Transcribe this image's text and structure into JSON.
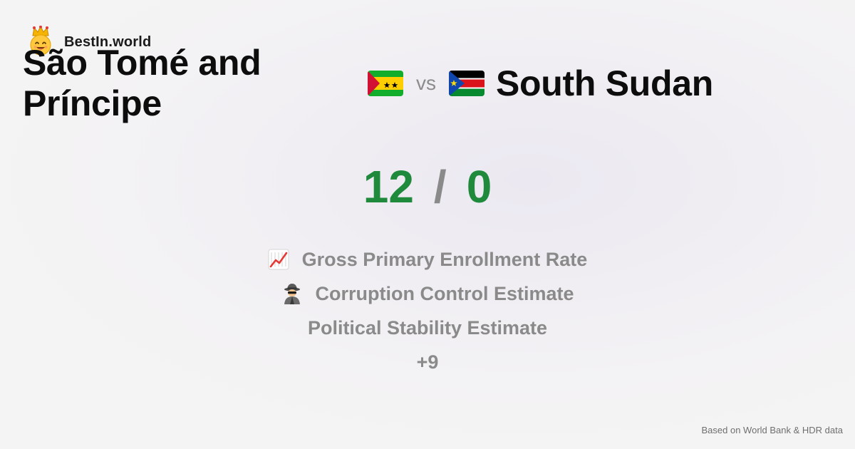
{
  "brand": {
    "name": "BestIn.world",
    "logo_icon": "crowned-smiley-icon"
  },
  "comparison": {
    "country_a": {
      "name": "São Tomé and Príncipe",
      "flag_icon": "sao-tome-and-principe-flag-icon",
      "score": "12"
    },
    "vs_label": "vs",
    "country_b": {
      "name": "South Sudan",
      "flag_icon": "south-sudan-flag-icon",
      "score": "0"
    },
    "separator": "/"
  },
  "metrics": [
    {
      "label": "Gross Primary Enrollment Rate",
      "icon": "chart-increasing-icon"
    },
    {
      "label": "Corruption Control Estimate",
      "icon": "detective-icon"
    },
    {
      "label": "Political Stability Estimate",
      "icon": ""
    },
    {
      "label": "+9",
      "icon": ""
    }
  ],
  "footer": {
    "source": "Based on World Bank & HDR data"
  },
  "colors": {
    "score": "#1f8a3c",
    "muted": "#8a8a8a",
    "text": "#0d0d0d"
  }
}
